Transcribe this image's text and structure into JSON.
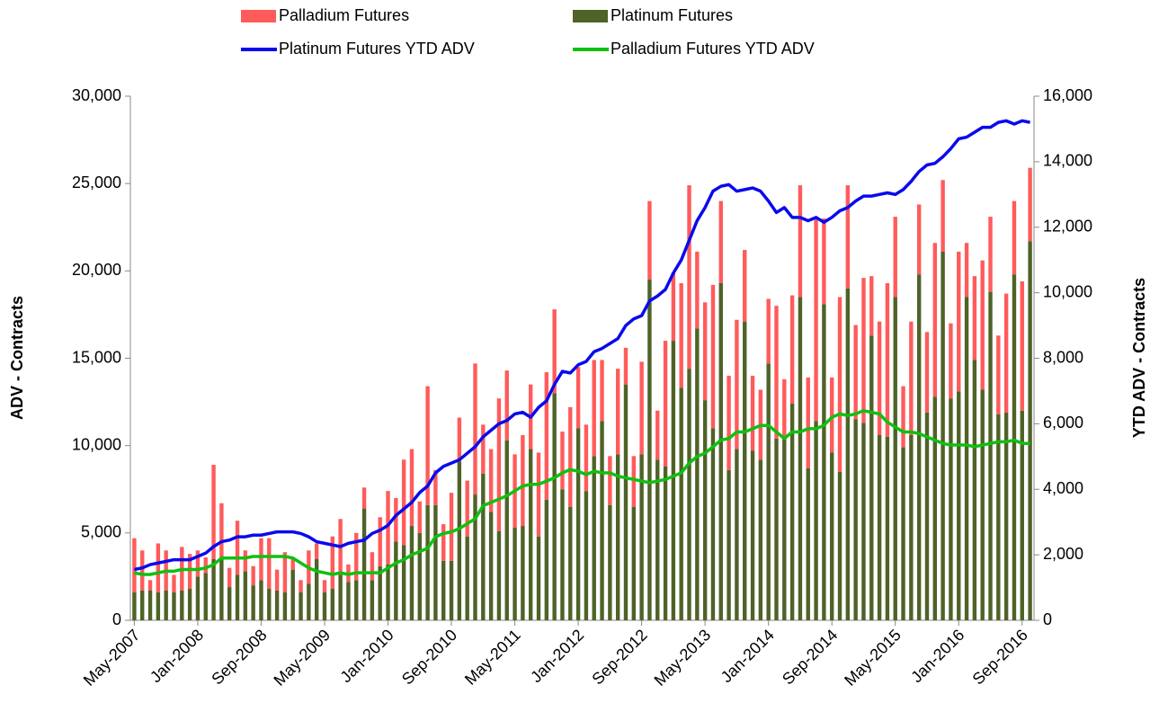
{
  "chart_data": {
    "type": "bar",
    "stacked": true,
    "y_label": "ADV - Contracts",
    "y2_label": "YTD ADV - Contracts",
    "categories": [
      "May-2007",
      null,
      null,
      null,
      null,
      null,
      null,
      null,
      "Jan-2008",
      null,
      null,
      null,
      null,
      null,
      null,
      null,
      "Sep-2008",
      null,
      null,
      null,
      null,
      null,
      null,
      null,
      "May-2009",
      null,
      null,
      null,
      null,
      null,
      null,
      null,
      "Jan-2010",
      null,
      null,
      null,
      null,
      null,
      null,
      null,
      "Sep-2010",
      null,
      null,
      null,
      null,
      null,
      null,
      null,
      "May-2011",
      null,
      null,
      null,
      null,
      null,
      null,
      null,
      "Jan-2012",
      null,
      null,
      null,
      null,
      null,
      null,
      null,
      "Sep-2012",
      null,
      null,
      null,
      null,
      null,
      null,
      null,
      "May-2013",
      null,
      null,
      null,
      null,
      null,
      null,
      null,
      "Jan-2014",
      null,
      null,
      null,
      null,
      null,
      null,
      null,
      "Sep-2014",
      null,
      null,
      null,
      null,
      null,
      null,
      null,
      "May-2015",
      null,
      null,
      null,
      null,
      null,
      null,
      null,
      "Jan-2016",
      null,
      null,
      null,
      null,
      null,
      null,
      null,
      "Sep-2016",
      null
    ],
    "ylim": [
      0,
      30000
    ],
    "yticks": [
      0,
      {
        "value": 5000,
        "label": "5,000"
      },
      {
        "value": 10000,
        "label": "10,000"
      },
      {
        "value": 15000,
        "label": "15,000"
      },
      {
        "value": 20000,
        "label": "20,000"
      },
      {
        "value": 25000,
        "label": "25,000"
      },
      {
        "value": 30000,
        "label": "30,000"
      }
    ],
    "y2lim": [
      0,
      16000
    ],
    "y2ticks": [
      0,
      {
        "value": 2000,
        "label": "2,000"
      },
      {
        "value": 4000,
        "label": "4,000"
      },
      {
        "value": 6000,
        "label": "6,000"
      },
      {
        "value": 8000,
        "label": "8,000"
      },
      {
        "value": 10000,
        "label": "10,000"
      },
      {
        "value": 12000,
        "label": "12,000"
      },
      {
        "value": 14000,
        "label": "14,000"
      },
      {
        "value": 16000,
        "label": "16,000"
      }
    ],
    "series": [
      {
        "name": "Palladium Futures",
        "type": "bar",
        "color": "#ff5b5b",
        "values": [
          3100,
          2300,
          600,
          2800,
          2300,
          1000,
          2500,
          2000,
          1500,
          900,
          5400,
          3200,
          1100,
          3100,
          1200,
          1100,
          2400,
          2900,
          1200,
          2300,
          700,
          700,
          1900,
          900,
          700,
          3000,
          3200,
          1000,
          2700,
          1200,
          1600,
          2800,
          4200,
          2500,
          4900,
          4400,
          1800,
          6800,
          2000,
          2100,
          3900,
          2500,
          3200,
          7500,
          2800,
          3600,
          7600,
          4000,
          4200,
          5200,
          3700,
          4800,
          7300,
          4800,
          3300,
          5700,
          3500,
          3800,
          5500,
          3500,
          2800,
          4900,
          2100,
          2900,
          5300,
          4500,
          2800,
          7200,
          3900,
          6000,
          10500,
          4400,
          5600,
          8200,
          4700,
          5400,
          7400,
          4100,
          4300,
          4000,
          3700,
          7600,
          3400,
          6200,
          6400,
          5200,
          11600,
          4900,
          4300,
          10000,
          5900,
          5400,
          8300,
          3400,
          6500,
          8800,
          4600,
          3500,
          6500,
          4000,
          4600,
          8800,
          4100,
          4300,
          8000,
          3100,
          4800,
          7400,
          4300,
          4500,
          6800,
          4200,
          7400,
          4200
        ]
      },
      {
        "name": "Platinum Futures",
        "type": "bar",
        "color": "#4f6228",
        "values": [
          1600,
          1700,
          1700,
          1600,
          1700,
          1600,
          1700,
          1800,
          2500,
          2700,
          3500,
          3500,
          1900,
          2600,
          2800,
          2000,
          2300,
          1800,
          1700,
          1600,
          2900,
          1600,
          2100,
          3500,
          1600,
          1800,
          2600,
          2200,
          2300,
          6400,
          2300,
          3100,
          3200,
          4500,
          4300,
          5400,
          5000,
          6600,
          6600,
          3400,
          3400,
          9100,
          4800,
          7200,
          8400,
          6200,
          5100,
          10300,
          5300,
          5400,
          9800,
          4800,
          6900,
          13000,
          7500,
          6500,
          11000,
          7400,
          9400,
          11400,
          6600,
          9500,
          13500,
          6500,
          9500,
          19500,
          9200,
          8800,
          16000,
          13300,
          14400,
          16700,
          12600,
          11000,
          19300,
          8600,
          9800,
          17100,
          9700,
          9200,
          14700,
          10400,
          10400,
          12400,
          18500,
          8700,
          11400,
          18100,
          9600,
          8500,
          19000,
          11500,
          11300,
          16300,
          10600,
          10500,
          18500,
          9900,
          10600,
          19800,
          11900,
          12800,
          21100,
          12700,
          13100,
          18500,
          14900,
          13200,
          18800,
          11800,
          11900,
          19800,
          12000,
          21700
        ]
      },
      {
        "name": "Platinum Futures YTD ADV",
        "type": "line",
        "axis": "y2",
        "color": "#0a0aeb",
        "values": [
          1550,
          1600,
          1700,
          1750,
          1800,
          1850,
          1850,
          1850,
          1950,
          2050,
          2250,
          2400,
          2450,
          2550,
          2550,
          2600,
          2600,
          2650,
          2700,
          2700,
          2700,
          2650,
          2550,
          2400,
          2350,
          2300,
          2250,
          2350,
          2400,
          2450,
          2650,
          2750,
          2900,
          3200,
          3400,
          3600,
          3900,
          4100,
          4500,
          4700,
          4800,
          4900,
          5100,
          5300,
          5600,
          5800,
          6000,
          6100,
          6300,
          6350,
          6200,
          6500,
          6700,
          7200,
          7600,
          7550,
          7800,
          7900,
          8200,
          8300,
          8450,
          8600,
          9000,
          9200,
          9300,
          9750,
          9900,
          10100,
          10600,
          11000,
          11600,
          12200,
          12600,
          13100,
          13250,
          13300,
          13100,
          13150,
          13200,
          13100,
          12800,
          12450,
          12600,
          12300,
          12300,
          12200,
          12300,
          12150,
          12300,
          12500,
          12600,
          12800,
          12950,
          12950,
          13000,
          13050,
          13000,
          13150,
          13400,
          13700,
          13900,
          13950,
          14150,
          14400,
          14700,
          14750,
          14900,
          15050,
          15050,
          15200,
          15250,
          15150,
          15250,
          15200
        ]
      },
      {
        "name": "Palladium Futures YTD ADV",
        "type": "line",
        "axis": "y2",
        "color": "#10c010",
        "values": [
          1450,
          1400,
          1400,
          1450,
          1500,
          1500,
          1550,
          1550,
          1550,
          1600,
          1700,
          1900,
          1900,
          1900,
          1900,
          1950,
          1950,
          1950,
          1950,
          1950,
          1900,
          1750,
          1600,
          1500,
          1450,
          1400,
          1450,
          1400,
          1450,
          1450,
          1450,
          1450,
          1600,
          1750,
          1850,
          2000,
          2100,
          2200,
          2550,
          2650,
          2700,
          2800,
          2950,
          3100,
          3500,
          3600,
          3700,
          3800,
          3950,
          4100,
          4150,
          4150,
          4250,
          4350,
          4500,
          4600,
          4550,
          4450,
          4550,
          4500,
          4500,
          4400,
          4350,
          4300,
          4250,
          4200,
          4250,
          4300,
          4400,
          4500,
          4800,
          5000,
          5100,
          5300,
          5500,
          5550,
          5750,
          5750,
          5850,
          5950,
          5950,
          5750,
          5550,
          5750,
          5750,
          5850,
          5850,
          5950,
          6200,
          6300,
          6250,
          6300,
          6400,
          6350,
          6300,
          6050,
          5900,
          5750,
          5750,
          5700,
          5600,
          5500,
          5400,
          5350,
          5350,
          5350,
          5300,
          5350,
          5400,
          5450,
          5450,
          5500,
          5400,
          5400
        ]
      }
    ]
  }
}
